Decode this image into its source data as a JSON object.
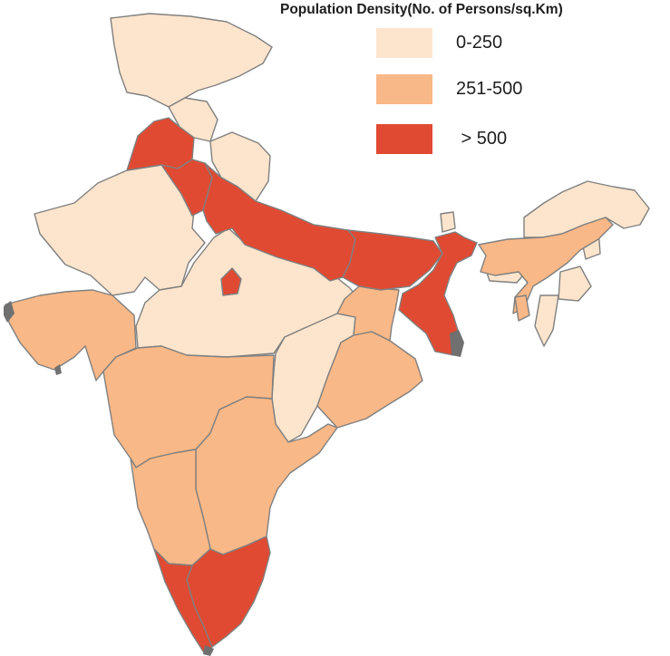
{
  "legend": {
    "title": "Population Density(No. of Persons/sq.Km)",
    "classes": [
      {
        "label": "0-250",
        "color": "#fce5cc"
      },
      {
        "label": "251-500",
        "color": "#f9b887"
      },
      {
        "label": " > 500",
        "color": "#e04a33"
      }
    ]
  },
  "colors": {
    "border": "#808080",
    "coast": "#707070"
  }
}
